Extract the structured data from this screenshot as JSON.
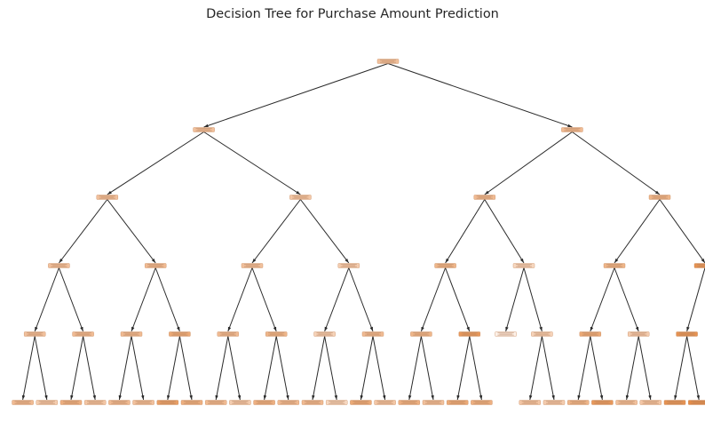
{
  "title": "Decision Tree for Purchase Amount Prediction",
  "colors": {
    "edge": "#2a2a2a",
    "node_light": "#fdf1e8",
    "node_dark": "#df7a2c",
    "background": "#ffffff"
  },
  "tree": {
    "v": 0.4,
    "c": [
      {
        "v": 0.4,
        "c": [
          {
            "v": 0.4,
            "c": [
              {
                "v": 0.4,
                "c": [
                  {
                    "v": 0.4,
                    "c": [
                      {
                        "v": 0.45
                      },
                      {
                        "v": 0.3
                      }
                    ]
                  },
                  {
                    "v": 0.45,
                    "c": [
                      {
                        "v": 0.55
                      },
                      {
                        "v": 0.35
                      }
                    ]
                  }
                ]
              },
              {
                "v": 0.45,
                "c": [
                  {
                    "v": 0.45,
                    "c": [
                      {
                        "v": 0.45
                      },
                      {
                        "v": 0.4
                      }
                    ]
                  },
                  {
                    "v": 0.6,
                    "c": [
                      {
                        "v": 0.7
                      },
                      {
                        "v": 0.55
                      }
                    ]
                  }
                ]
              }
            ]
          },
          {
            "v": 0.35,
            "c": [
              {
                "v": 0.4,
                "c": [
                  {
                    "v": 0.45,
                    "c": [
                      {
                        "v": 0.45
                      },
                      {
                        "v": 0.3
                      }
                    ]
                  },
                  {
                    "v": 0.5,
                    "c": [
                      {
                        "v": 0.55
                      },
                      {
                        "v": 0.45
                      }
                    ]
                  }
                ]
              },
              {
                "v": 0.3,
                "c": [
                  {
                    "v": 0.25,
                    "c": [
                      {
                        "v": 0.45
                      },
                      {
                        "v": 0.2
                      }
                    ]
                  },
                  {
                    "v": 0.45,
                    "c": [
                      {
                        "v": 0.6
                      },
                      {
                        "v": 0.35
                      }
                    ]
                  }
                ]
              }
            ]
          }
        ]
      },
      {
        "v": 0.45,
        "c": [
          {
            "v": 0.45,
            "c": [
              {
                "v": 0.5,
                "c": [
                  {
                    "v": 0.5,
                    "c": [
                      {
                        "v": 0.55
                      },
                      {
                        "v": 0.4
                      }
                    ]
                  },
                  {
                    "v": 0.75,
                    "c": [
                      {
                        "v": 0.6
                      },
                      {
                        "v": 0.55
                      }
                    ]
                  }
                ]
              },
              {
                "v": 0.2,
                "c": [
                  {
                    "v": 0.0
                  },
                  {
                    "v": 0.25,
                    "c": [
                      {
                        "v": 0.35
                      },
                      {
                        "v": 0.3
                      }
                    ]
                  }
                ]
              }
            ]
          },
          {
            "v": 0.5,
            "c": [
              {
                "v": 0.5,
                "c": [
                  {
                    "v": 0.6,
                    "c": [
                      {
                        "v": 0.5
                      },
                      {
                        "v": 0.75
                      }
                    ]
                  },
                  {
                    "v": 0.3,
                    "c": [
                      {
                        "v": 0.4
                      },
                      {
                        "v": 0.35
                      }
                    ]
                  }
                ]
              },
              {
                "v": 0.8,
                "c": [
                  {
                    "v": 0.8,
                    "c": [
                      {
                        "v": 0.8
                      },
                      {
                        "v": 0.85
                      }
                    ]
                  },
                  {
                    "v": 0.85
                  }
                ]
              }
            ]
          }
        ]
      }
    ]
  }
}
